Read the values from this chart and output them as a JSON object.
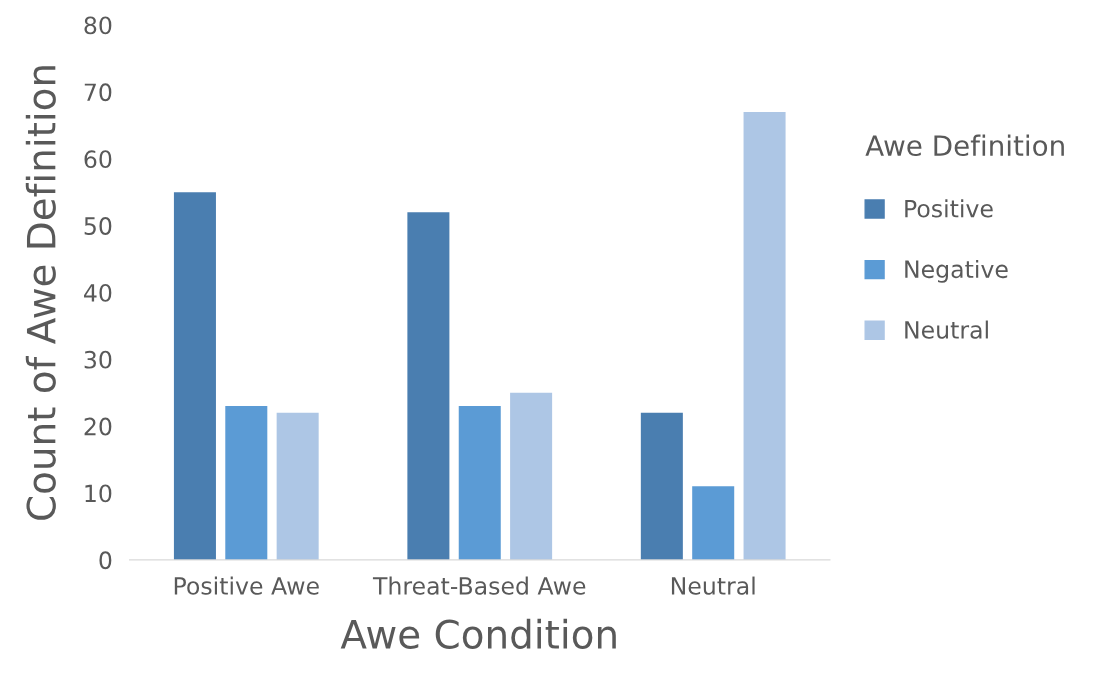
{
  "chart_data": {
    "type": "bar",
    "xlabel": "Awe Condition",
    "ylabel": "Count of Awe Definition",
    "legend_title": "Awe Definition",
    "categories": [
      "Positive Awe",
      "Threat-Based Awe",
      "Neutral"
    ],
    "series": [
      {
        "name": "Positive",
        "color": "#4a7eb0",
        "values": [
          55,
          52,
          22
        ]
      },
      {
        "name": "Negative",
        "color": "#5b9bd5",
        "values": [
          23,
          23,
          11
        ]
      },
      {
        "name": "Neutral",
        "color": "#adc6e5",
        "values": [
          22,
          25,
          67
        ]
      }
    ],
    "ylim": [
      0,
      80
    ],
    "yticks": [
      0,
      10,
      20,
      30,
      40,
      50,
      60,
      70,
      80
    ],
    "grid": false,
    "legend": "right"
  }
}
